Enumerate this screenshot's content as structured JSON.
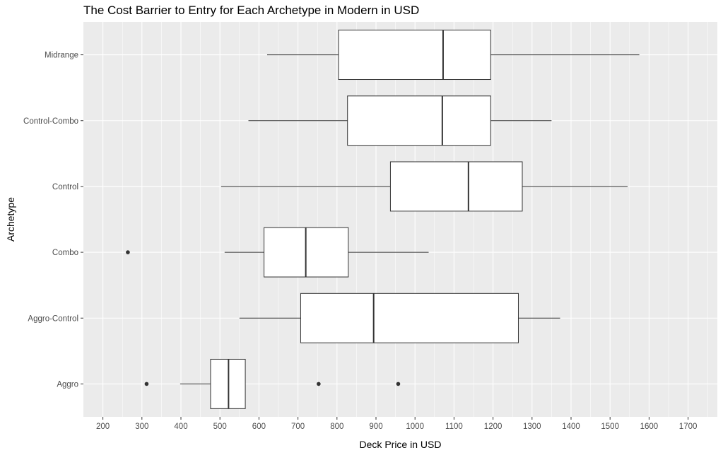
{
  "chart_data": {
    "type": "boxplot",
    "orientation": "horizontal",
    "title": "The Cost Barrier to Entry for Each Archetype in Modern in USD",
    "xlabel": "Deck Price in USD",
    "ylabel": "Archetype",
    "xlim": [
      150,
      1775
    ],
    "x_ticks": [
      200,
      300,
      400,
      500,
      600,
      700,
      800,
      900,
      1000,
      1100,
      1200,
      1300,
      1400,
      1500,
      1600,
      1700
    ],
    "grid": true,
    "colors": {
      "panel": "#ebebeb",
      "grid": "#ffffff",
      "box_fill": "#ffffff",
      "box_stroke": "#333333",
      "tick_text": "#4d4d4d"
    },
    "categories": [
      "Aggro",
      "Aggro-Control",
      "Combo",
      "Control",
      "Control-Combo",
      "Midrange"
    ],
    "boxes": [
      {
        "category": "Aggro",
        "whisker_low": 398,
        "q1": 476,
        "median": 522,
        "q3": 565,
        "whisker_high": 565,
        "outliers": [
          312,
          753,
          957
        ]
      },
      {
        "category": "Aggro-Control",
        "whisker_low": 550,
        "q1": 707,
        "median": 894,
        "q3": 1265,
        "whisker_high": 1372,
        "outliers": []
      },
      {
        "category": "Combo",
        "whisker_low": 512,
        "q1": 613,
        "median": 720,
        "q3": 829,
        "whisker_high": 1035,
        "outliers": [
          264
        ]
      },
      {
        "category": "Control",
        "whisker_low": 503,
        "q1": 937,
        "median": 1137,
        "q3": 1275,
        "whisker_high": 1545,
        "outliers": []
      },
      {
        "category": "Control-Combo",
        "whisker_low": 573,
        "q1": 827,
        "median": 1070,
        "q3": 1194,
        "whisker_high": 1350,
        "outliers": []
      },
      {
        "category": "Midrange",
        "whisker_low": 621,
        "q1": 804,
        "median": 1072,
        "q3": 1194,
        "whisker_high": 1575,
        "outliers": []
      }
    ]
  }
}
